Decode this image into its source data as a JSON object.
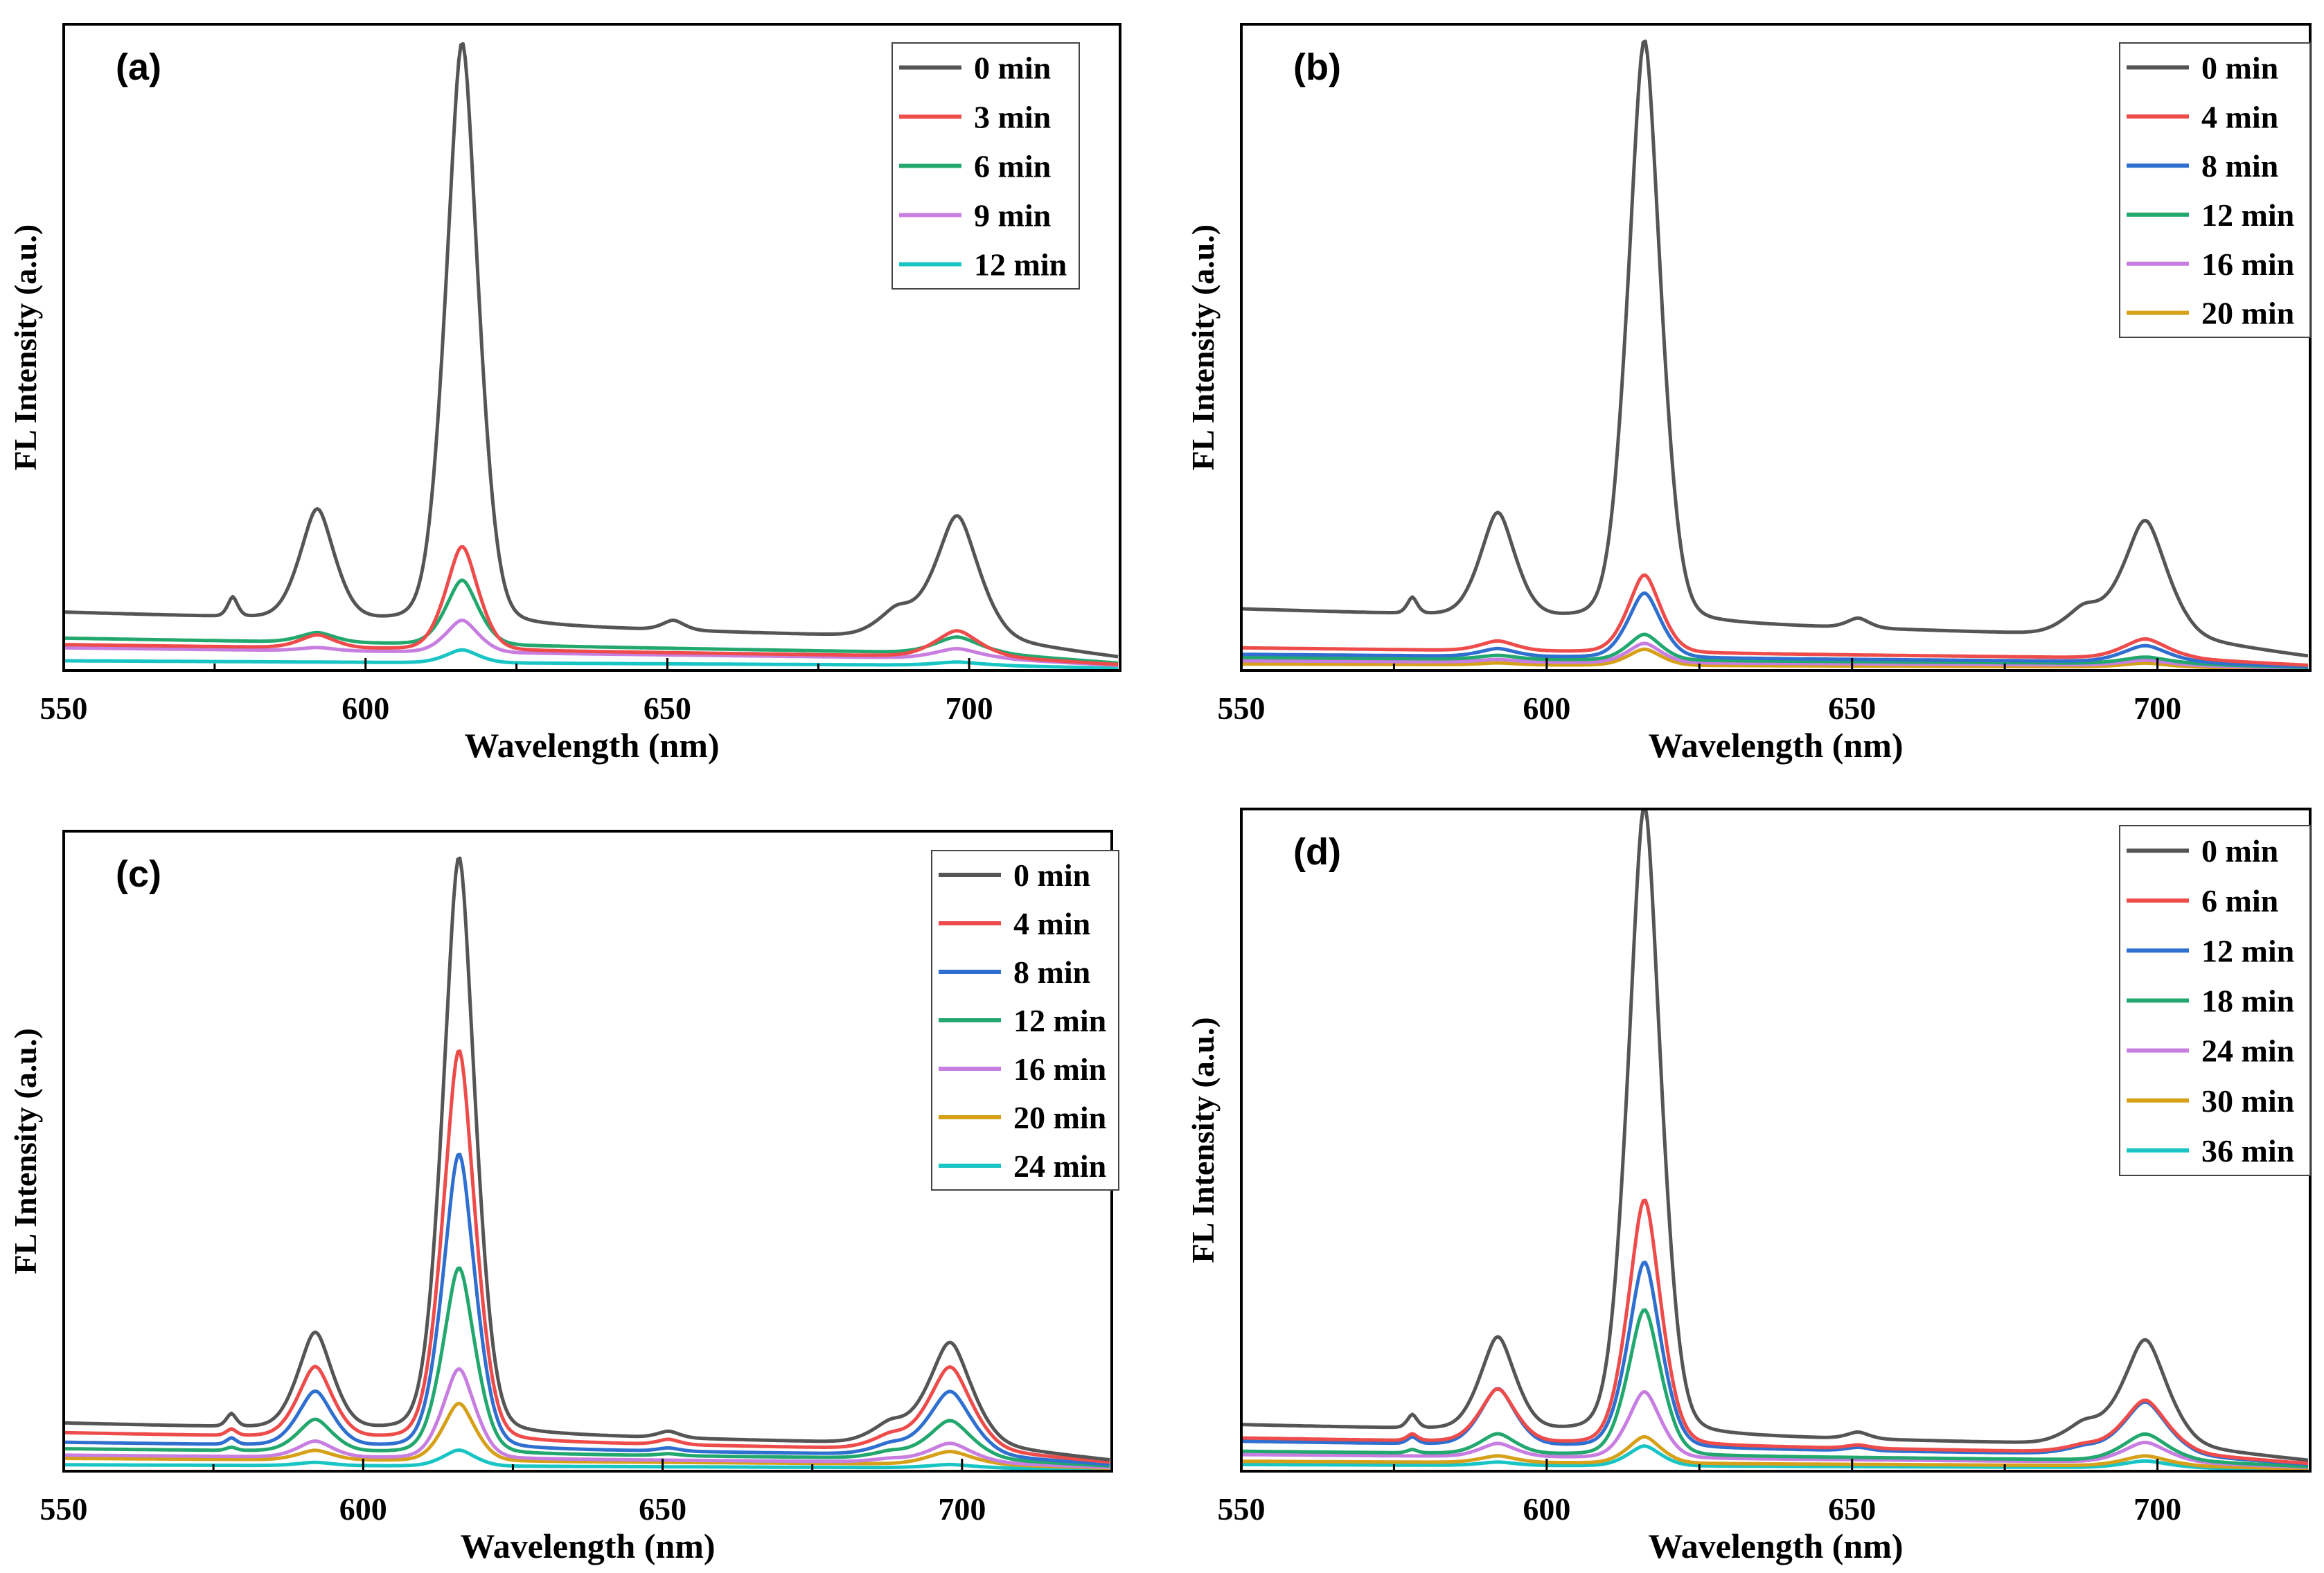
{
  "figure": {
    "shared": {
      "xlabel": "Wavelength (nm)",
      "ylabel": "FL Intensity (a.u.)",
      "xlim": [
        550,
        725
      ],
      "xticks": [
        550,
        600,
        650,
        700
      ]
    },
    "colors": {
      "0": "#555555",
      "3": "#ee4b4b",
      "4": "#ee4b4b",
      "6a": "#22a86e",
      "6d": "#ee4b4b",
      "8": "#2f6fd0",
      "9": "#c77ee0",
      "12a": "#19c4c4",
      "12b": "#22a86e",
      "12c": "#22a86e",
      "12d": "#2f6fd0",
      "16": "#c77ee0",
      "18": "#22a86e",
      "20": "#d6a019",
      "24c": "#19c4c4",
      "24d": "#c77ee0",
      "30": "#d6a019",
      "36": "#19c4c4"
    }
  },
  "chart_data": [
    {
      "type": "line",
      "panel": "(a)",
      "xlabel": "Wavelength (nm)",
      "ylabel": "FL Intensity (a.u.)",
      "xlim": [
        550,
        725
      ],
      "ylim": [
        0,
        1.0
      ],
      "legend_position": "top-right",
      "series": [
        {
          "name": "0 min",
          "color": "#555555",
          "baseline": 0.09,
          "peaks": {
            "578": 0.03,
            "592": 0.17,
            "616": 0.9,
            "651": 0.015,
            "688": 0.04,
            "698": 0.19
          }
        },
        {
          "name": "3 min",
          "color": "#ee4b4b",
          "baseline": 0.04,
          "peaks": {
            "578": 0.0,
            "592": 0.02,
            "616": 0.16,
            "651": 0.0,
            "688": 0.0,
            "698": 0.04
          }
        },
        {
          "name": "6 min",
          "color": "#22a86e",
          "baseline": 0.05,
          "peaks": {
            "578": 0.0,
            "592": 0.015,
            "616": 0.1,
            "651": 0.0,
            "688": 0.0,
            "698": 0.025
          }
        },
        {
          "name": "9 min",
          "color": "#c77ee0",
          "baseline": 0.035,
          "peaks": {
            "578": 0.0,
            "592": 0.005,
            "616": 0.05,
            "651": 0.0,
            "688": 0.0,
            "698": 0.015
          }
        },
        {
          "name": "12 min",
          "color": "#19c4c4",
          "baseline": 0.015,
          "peaks": {
            "578": 0.0,
            "592": 0.0,
            "616": 0.02,
            "651": 0.0,
            "688": 0.0,
            "698": 0.005
          }
        }
      ]
    },
    {
      "type": "line",
      "panel": "(b)",
      "xlabel": "Wavelength (nm)",
      "ylabel": "FL Intensity (a.u.)",
      "xlim": [
        550,
        725
      ],
      "ylim": [
        0,
        1.0
      ],
      "legend_position": "top-right",
      "series": [
        {
          "name": "0 min",
          "color": "#555555",
          "baseline": 0.095,
          "peaks": {
            "578": 0.025,
            "592": 0.16,
            "616": 0.9,
            "651": 0.015,
            "688": 0.04,
            "698": 0.18
          }
        },
        {
          "name": "4 min",
          "color": "#ee4b4b",
          "baseline": 0.035,
          "peaks": {
            "578": 0.0,
            "592": 0.015,
            "616": 0.12,
            "651": 0.0,
            "688": 0.0,
            "698": 0.03
          }
        },
        {
          "name": "8 min",
          "color": "#2f6fd0",
          "baseline": 0.025,
          "peaks": {
            "578": 0.0,
            "592": 0.012,
            "616": 0.1,
            "651": 0.0,
            "688": 0.0,
            "698": 0.025
          }
        },
        {
          "name": "12 min",
          "color": "#22a86e",
          "baseline": 0.02,
          "peaks": {
            "578": 0.0,
            "592": 0.006,
            "616": 0.04,
            "651": 0.0,
            "688": 0.0,
            "698": 0.01
          }
        },
        {
          "name": "16 min",
          "color": "#c77ee0",
          "baseline": 0.015,
          "peaks": {
            "578": 0.0,
            "592": 0.004,
            "616": 0.03,
            "651": 0.0,
            "688": 0.0,
            "698": 0.008
          }
        },
        {
          "name": "20 min",
          "color": "#d6a019",
          "baseline": 0.01,
          "peaks": {
            "578": 0.0,
            "592": 0.003,
            "616": 0.025,
            "651": 0.0,
            "688": 0.0,
            "698": 0.006
          }
        }
      ]
    },
    {
      "type": "line",
      "panel": "(c)",
      "xlabel": "Wavelength (nm)",
      "ylabel": "FL Intensity (a.u.)",
      "xlim": [
        550,
        725
      ],
      "ylim": [
        0,
        1.0
      ],
      "legend_position": "top-right",
      "series": [
        {
          "name": "0 min",
          "color": "#555555",
          "baseline": 0.075,
          "peaks": {
            "578": 0.02,
            "592": 0.15,
            "616": 0.9,
            "651": 0.01,
            "688": 0.03,
            "698": 0.16
          }
        },
        {
          "name": "4 min",
          "color": "#ee4b4b",
          "baseline": 0.06,
          "peaks": {
            "578": 0.01,
            "592": 0.11,
            "616": 0.61,
            "651": 0.008,
            "688": 0.02,
            "698": 0.13
          }
        },
        {
          "name": "8 min",
          "color": "#2f6fd0",
          "baseline": 0.045,
          "peaks": {
            "578": 0.01,
            "592": 0.085,
            "616": 0.46,
            "651": 0.005,
            "688": 0.015,
            "698": 0.1
          }
        },
        {
          "name": "12 min",
          "color": "#22a86e",
          "baseline": 0.035,
          "peaks": {
            "578": 0.005,
            "592": 0.05,
            "616": 0.29,
            "651": 0.003,
            "688": 0.01,
            "698": 0.06
          }
        },
        {
          "name": "16 min",
          "color": "#c77ee0",
          "baseline": 0.025,
          "peaks": {
            "578": 0.0,
            "592": 0.025,
            "616": 0.14,
            "651": 0.0,
            "688": 0.005,
            "698": 0.03
          }
        },
        {
          "name": "20 min",
          "color": "#d6a019",
          "baseline": 0.02,
          "peaks": {
            "578": 0.0,
            "592": 0.015,
            "616": 0.09,
            "651": 0.0,
            "688": 0.0,
            "698": 0.02
          }
        },
        {
          "name": "24 min",
          "color": "#19c4c4",
          "baseline": 0.01,
          "peaks": {
            "578": 0.0,
            "592": 0.005,
            "616": 0.025,
            "651": 0.0,
            "688": 0.0,
            "698": 0.005
          }
        }
      ]
    },
    {
      "type": "line",
      "panel": "(d)",
      "xlabel": "Wavelength (nm)",
      "ylabel": "FL Intensity (a.u.)",
      "xlim": [
        550,
        725
      ],
      "ylim": [
        0,
        1.0
      ],
      "legend_position": "top-right",
      "series": [
        {
          "name": "0 min",
          "color": "#555555",
          "baseline": 0.07,
          "peaks": {
            "578": 0.02,
            "592": 0.14,
            "616": 0.95,
            "651": 0.01,
            "688": 0.03,
            "698": 0.16
          }
        },
        {
          "name": "6 min",
          "color": "#ee4b4b",
          "baseline": 0.05,
          "peaks": {
            "578": 0.01,
            "592": 0.08,
            "616": 0.37,
            "651": 0.005,
            "688": 0.01,
            "698": 0.08
          }
        },
        {
          "name": "12 min",
          "color": "#2f6fd0",
          "baseline": 0.045,
          "peaks": {
            "578": 0.01,
            "592": 0.085,
            "616": 0.28,
            "651": 0.005,
            "688": 0.01,
            "698": 0.08
          }
        },
        {
          "name": "18 min",
          "color": "#22a86e",
          "baseline": 0.03,
          "peaks": {
            "578": 0.005,
            "592": 0.03,
            "616": 0.22,
            "651": 0.0,
            "688": 0.0,
            "698": 0.04
          }
        },
        {
          "name": "24 min",
          "color": "#c77ee0",
          "baseline": 0.025,
          "peaks": {
            "578": 0.0,
            "592": 0.02,
            "616": 0.1,
            "651": 0.0,
            "688": 0.0,
            "698": 0.03
          }
        },
        {
          "name": "30 min",
          "color": "#d6a019",
          "baseline": 0.015,
          "peaks": {
            "578": 0.0,
            "592": 0.01,
            "616": 0.04,
            "651": 0.0,
            "688": 0.0,
            "698": 0.015
          }
        },
        {
          "name": "36 min",
          "color": "#19c4c4",
          "baseline": 0.01,
          "peaks": {
            "578": 0.0,
            "592": 0.005,
            "616": 0.03,
            "651": 0.0,
            "688": 0.0,
            "698": 0.01
          }
        }
      ]
    }
  ]
}
